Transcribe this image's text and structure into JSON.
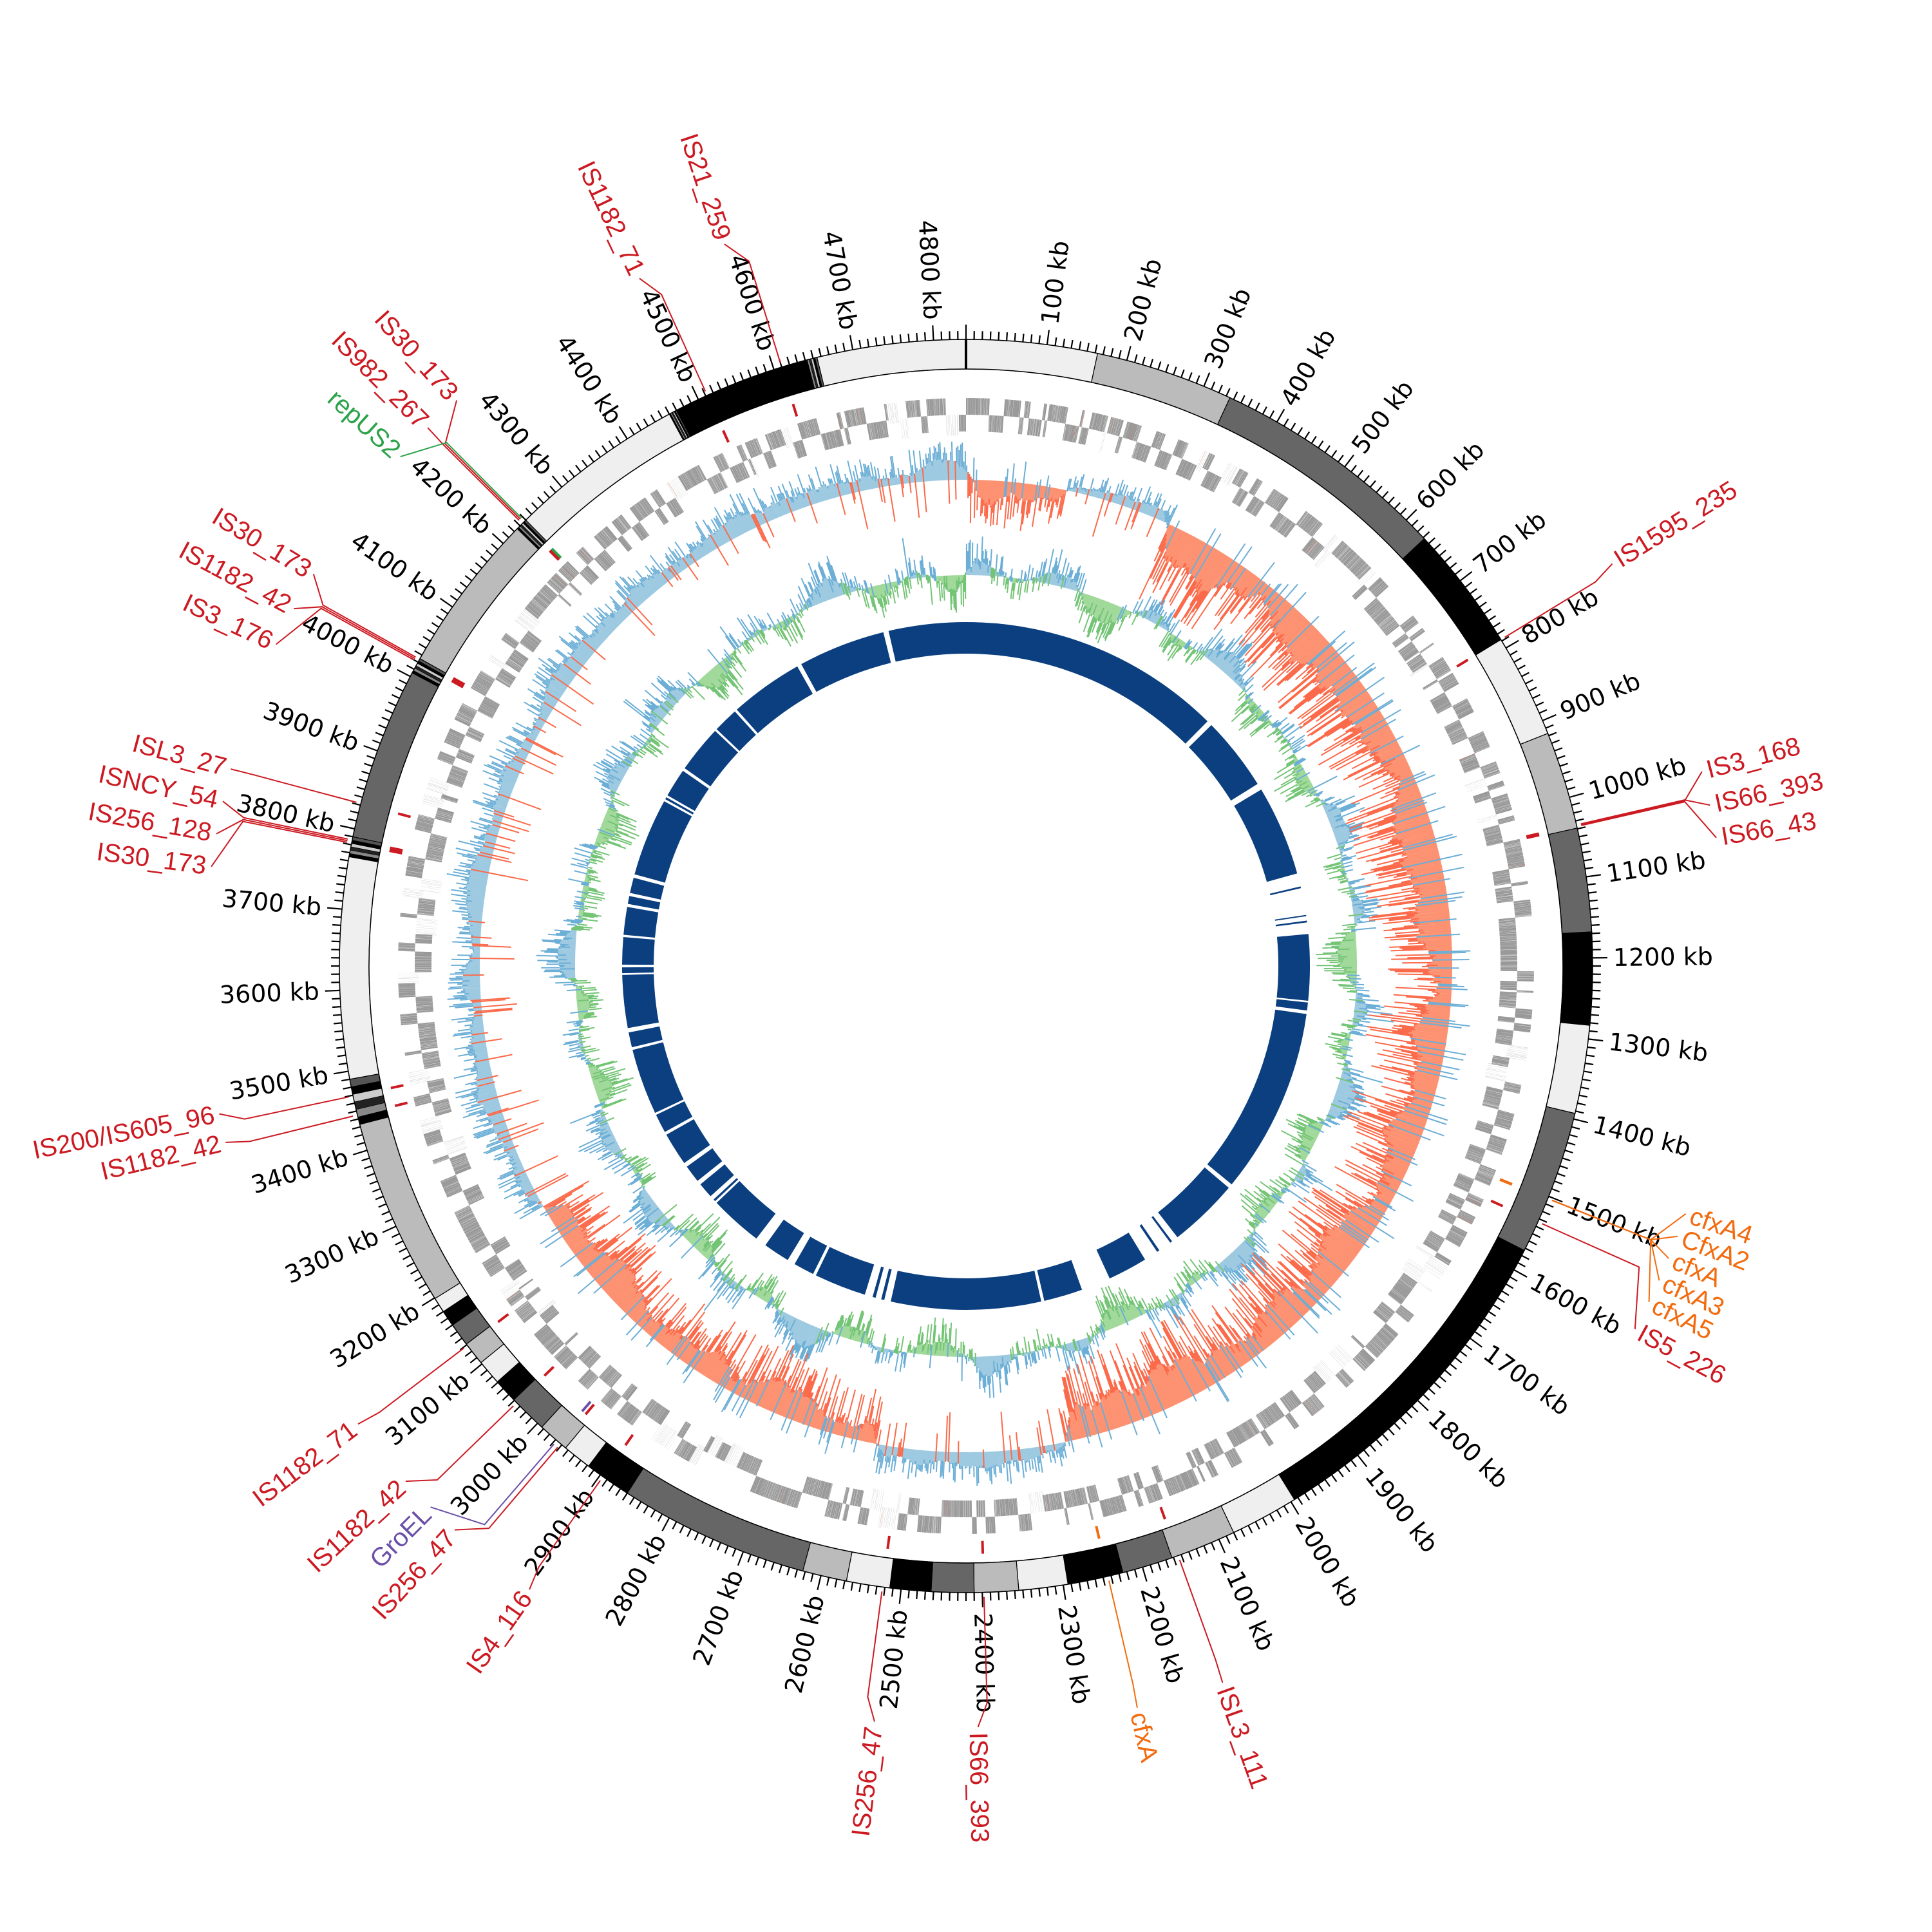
{
  "genome": {
    "length_kb": 4840
  },
  "colors": {
    "band_light": "#efefef",
    "band_mid": "#bbbbbb",
    "band_dark": "#666666",
    "band_black": "#000000",
    "gene": "#999999",
    "skew_positive_line": "#6baed6",
    "skew_positive_fill": "#9ecae1",
    "skew_negative_line": "#fb6a4a",
    "skew_negative_fill": "#fc9272",
    "gc_above_line": "#6baed6",
    "gc_above_fill": "#9ecae1",
    "gc_below_line": "#74c476",
    "gc_below_fill": "#a1d99b",
    "inner_block": "#0b3f7f",
    "IS": "#cc1a22",
    "rep": "#2ca24a",
    "ARG": "#f26b0f",
    "chaperone": "#6a4fa8"
  },
  "ticks": {
    "major_kb": 100,
    "minor_kb": 10,
    "labels": [
      "100 kb",
      "200 kb",
      "300 kb",
      "400 kb",
      "500 kb",
      "600 kb",
      "700 kb",
      "800 kb",
      "900 kb",
      "1000 kb",
      "1100 kb",
      "1200 kb",
      "1300 kb",
      "1400 kb",
      "1500 kb",
      "1600 kb",
      "1700 kb",
      "1800 kb",
      "1900 kb",
      "2000 kb",
      "2100 kb",
      "2200 kb",
      "2300 kb",
      "2400 kb",
      "2500 kb",
      "2600 kb",
      "2700 kb",
      "2800 kb",
      "2900 kb",
      "3000 kb",
      "3100 kb",
      "3200 kb",
      "3300 kb",
      "3400 kb",
      "3500 kb",
      "3600 kb",
      "3700 kb",
      "3800 kb",
      "3900 kb",
      "4000 kb",
      "4100 kb",
      "4200 kb",
      "4300 kb",
      "4400 kb",
      "4500 kb",
      "4600 kb",
      "4700 kb",
      "4800 kb"
    ]
  },
  "ideogram_bands": [
    {
      "start": 0,
      "end": 163,
      "shade": "light"
    },
    {
      "start": 163,
      "end": 335,
      "shade": "mid"
    },
    {
      "start": 335,
      "end": 632,
      "shade": "dark"
    },
    {
      "start": 632,
      "end": 788,
      "shade": "black"
    },
    {
      "start": 788,
      "end": 917,
      "shade": "light"
    },
    {
      "start": 917,
      "end": 1039,
      "shade": "mid"
    },
    {
      "start": 1039,
      "end": 1168,
      "shade": "dark"
    },
    {
      "start": 1168,
      "end": 1283,
      "shade": "black"
    },
    {
      "start": 1283,
      "end": 1393,
      "shade": "light"
    },
    {
      "start": 1393,
      "end": 1573,
      "shade": "dark"
    },
    {
      "start": 1573,
      "end": 1995,
      "shade": "black"
    },
    {
      "start": 1995,
      "end": 2080,
      "shade": "light"
    },
    {
      "start": 2080,
      "end": 2162,
      "shade": "mid"
    },
    {
      "start": 2162,
      "end": 2225,
      "shade": "dark"
    },
    {
      "start": 2225,
      "end": 2294,
      "shade": "black"
    },
    {
      "start": 2294,
      "end": 2355,
      "shade": "light"
    },
    {
      "start": 2355,
      "end": 2410,
      "shade": "mid"
    },
    {
      "start": 2410,
      "end": 2463,
      "shade": "dark"
    },
    {
      "start": 2463,
      "end": 2514,
      "shade": "black"
    },
    {
      "start": 2514,
      "end": 2568,
      "shade": "light"
    },
    {
      "start": 2568,
      "end": 2623,
      "shade": "mid"
    },
    {
      "start": 2623,
      "end": 2860,
      "shade": "dark"
    },
    {
      "start": 2860,
      "end": 2918,
      "shade": "black"
    },
    {
      "start": 2918,
      "end": 2954,
      "shade": "light"
    },
    {
      "start": 2954,
      "end": 2993,
      "shade": "mid"
    },
    {
      "start": 2993,
      "end": 3041,
      "shade": "dark"
    },
    {
      "start": 3041,
      "end": 3071,
      "shade": "black"
    },
    {
      "start": 3071,
      "end": 3102,
      "shade": "light"
    },
    {
      "start": 3102,
      "end": 3131,
      "shade": "mid"
    },
    {
      "start": 3131,
      "end": 3160,
      "shade": "dark"
    },
    {
      "start": 3160,
      "end": 3180,
      "shade": "black"
    },
    {
      "start": 3180,
      "end": 3199,
      "shade": "light"
    },
    {
      "start": 3199,
      "end": 3433,
      "shade": "mid"
    },
    {
      "start": 3433,
      "end": 3490,
      "shade": "stripe"
    },
    {
      "start": 3490,
      "end": 3765,
      "shade": "light"
    },
    {
      "start": 3765,
      "end": 3790,
      "shade": "stripe"
    },
    {
      "start": 3790,
      "end": 4005,
      "shade": "dark"
    },
    {
      "start": 4005,
      "end": 4025,
      "shade": "stripe"
    },
    {
      "start": 4025,
      "end": 4225,
      "shade": "mid"
    },
    {
      "start": 4225,
      "end": 4240,
      "shade": "stripe"
    },
    {
      "start": 4240,
      "end": 4460,
      "shade": "light"
    },
    {
      "start": 4460,
      "end": 4470,
      "shade": "stripe"
    },
    {
      "start": 4470,
      "end": 4640,
      "shade": "black"
    },
    {
      "start": 4640,
      "end": 4655,
      "shade": "stripe"
    },
    {
      "start": 4655,
      "end": 4840,
      "shade": "light"
    }
  ],
  "tracks": {
    "gc_skew_regions": [
      {
        "start": 0,
        "end": 160,
        "sign": -1,
        "strength": 0.5
      },
      {
        "start": 160,
        "end": 330,
        "sign": 1,
        "strength": 0.5
      },
      {
        "start": 330,
        "end": 2250,
        "sign": -1,
        "strength": 0.9
      },
      {
        "start": 2250,
        "end": 2560,
        "sign": 1,
        "strength": 0.6
      },
      {
        "start": 2560,
        "end": 3230,
        "sign": -1,
        "strength": 0.7
      },
      {
        "start": 3230,
        "end": 4840,
        "sign": 1,
        "strength": 0.7
      }
    ],
    "inner_blocks": [
      [
        4665,
        4840
      ],
      [
        0,
        600
      ],
      [
        612,
        780
      ],
      [
        795,
        1000
      ],
      [
        1030,
        1034
      ],
      [
        1095,
        1098
      ],
      [
        1108,
        1112
      ],
      [
        1138,
        1288
      ],
      [
        1292,
        1310
      ],
      [
        1318,
        1740
      ],
      [
        1750,
        1910
      ],
      [
        1925,
        1930
      ],
      [
        1960,
        1966
      ],
      [
        1998,
        2088
      ],
      [
        2155,
        2243
      ],
      [
        2250,
        2590
      ],
      [
        2605,
        2612
      ],
      [
        2625,
        2632
      ],
      [
        2650,
        2768
      ],
      [
        2775,
        2822
      ],
      [
        2840,
        2900
      ],
      [
        2925,
        3045
      ],
      [
        3050,
        3055
      ],
      [
        3065,
        3100
      ],
      [
        3110,
        3150
      ],
      [
        3160,
        3235
      ],
      [
        3242,
        3285
      ],
      [
        3290,
        3440
      ],
      [
        3446,
        3480
      ],
      [
        3490,
        3610
      ],
      [
        3614,
        3627
      ],
      [
        3633,
        3695
      ],
      [
        3700,
        3763
      ],
      [
        3770,
        3788
      ],
      [
        3795,
        3830
      ],
      [
        3838,
        4015
      ],
      [
        4020,
        4025
      ],
      [
        4030,
        4095
      ],
      [
        4102,
        4210
      ],
      [
        4215,
        4272
      ],
      [
        4278,
        4445
      ],
      [
        4455,
        4653
      ]
    ]
  },
  "features": [
    {
      "label": "IS21_259",
      "kb": 4610,
      "type": "IS"
    },
    {
      "label": "IS1182_71",
      "kb": 4512,
      "type": "IS"
    },
    {
      "label": "IS30_173",
      "kb": 4236,
      "type": "IS"
    },
    {
      "label": "IS982_267",
      "kb": 4234,
      "type": "IS"
    },
    {
      "label": "repUS2",
      "kb": 4238,
      "type": "rep"
    },
    {
      "label": "IS30_173",
      "kb": 4024,
      "type": "IS"
    },
    {
      "label": "IS1182_42",
      "kb": 4022,
      "type": "IS"
    },
    {
      "label": "IS3_176",
      "kb": 4020,
      "type": "IS"
    },
    {
      "label": "ISL3_27",
      "kb": 3832,
      "type": "IS"
    },
    {
      "label": "ISNCY_54",
      "kb": 3786,
      "type": "IS"
    },
    {
      "label": "IS256_128",
      "kb": 3784,
      "type": "IS"
    },
    {
      "label": "IS30_173",
      "kb": 3782,
      "type": "IS"
    },
    {
      "label": "IS200/IS605_96",
      "kb": 3469,
      "type": "IS"
    },
    {
      "label": "IS1182_42",
      "kb": 3445,
      "type": "IS"
    },
    {
      "label": "IS1182_71",
      "kb": 3129,
      "type": "IS"
    },
    {
      "label": "IS1182_42",
      "kb": 3036,
      "type": "IS"
    },
    {
      "label": "GroEL",
      "kb": 2968,
      "type": "chaperone"
    },
    {
      "label": "IS256_47",
      "kb": 2962,
      "type": "IS"
    },
    {
      "label": "IS4_116",
      "kb": 2896,
      "type": "IS"
    },
    {
      "label": "IS256_47",
      "kb": 2523,
      "type": "IS"
    },
    {
      "label": "IS66_393",
      "kb": 2398,
      "type": "IS"
    },
    {
      "label": "cfxA",
      "kb": 2244,
      "type": "ARG"
    },
    {
      "label": "ISL3_111",
      "kb": 2154,
      "type": "IS"
    },
    {
      "label": "IS5_226",
      "kb": 1534,
      "type": "IS"
    },
    {
      "label": "cfxA4",
      "kb": 1503,
      "type": "ARG"
    },
    {
      "label": "CfxA2",
      "kb": 1503,
      "type": "ARG"
    },
    {
      "label": "cfxA",
      "kb": 1503,
      "type": "ARG"
    },
    {
      "label": "cfxA3",
      "kb": 1503,
      "type": "ARG"
    },
    {
      "label": "cfxA5",
      "kb": 1503,
      "type": "ARG"
    },
    {
      "label": "IS3_168",
      "kb": 1036,
      "type": "IS"
    },
    {
      "label": "IS66_393",
      "kb": 1035,
      "type": "IS"
    },
    {
      "label": "IS66_43",
      "kb": 1037,
      "type": "IS"
    },
    {
      "label": "IS1595_235",
      "kb": 788,
      "type": "IS"
    }
  ]
}
